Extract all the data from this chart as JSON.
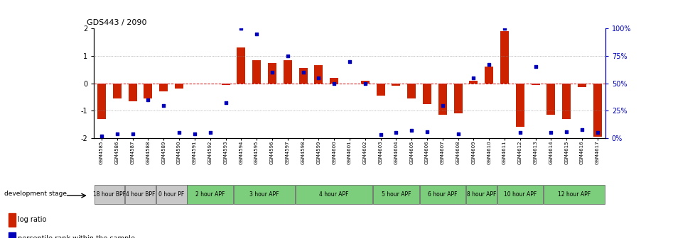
{
  "title": "GDS443 / 2090",
  "samples": [
    "GSM4585",
    "GSM4586",
    "GSM4587",
    "GSM4588",
    "GSM4589",
    "GSM4590",
    "GSM4591",
    "GSM4592",
    "GSM4593",
    "GSM4594",
    "GSM4595",
    "GSM4596",
    "GSM4597",
    "GSM4598",
    "GSM4599",
    "GSM4600",
    "GSM4601",
    "GSM4602",
    "GSM4603",
    "GSM4604",
    "GSM4605",
    "GSM4606",
    "GSM4607",
    "GSM4608",
    "GSM4609",
    "GSM4610",
    "GSM4611",
    "GSM4612",
    "GSM4613",
    "GSM4614",
    "GSM4615",
    "GSM4616",
    "GSM4617"
  ],
  "log_ratio": [
    -1.3,
    -0.55,
    -0.65,
    -0.55,
    -0.3,
    -0.2,
    0.0,
    0.0,
    -0.05,
    1.3,
    0.85,
    0.75,
    0.85,
    0.55,
    0.65,
    0.2,
    0.0,
    0.1,
    -0.45,
    -0.1,
    -0.55,
    -0.75,
    -1.15,
    -1.1,
    0.1,
    0.6,
    1.9,
    -1.6,
    -0.05,
    -1.15,
    -1.3,
    -0.15,
    -1.95
  ],
  "percentile": [
    2,
    4,
    4,
    35,
    30,
    5,
    4,
    5,
    32,
    100,
    95,
    60,
    75,
    60,
    55,
    50,
    70,
    50,
    3,
    5,
    7,
    6,
    30,
    4,
    55,
    67,
    100,
    5,
    65,
    5,
    6,
    8,
    5
  ],
  "stages": [
    {
      "label": "18 hour BPF",
      "start": 0,
      "end": 1,
      "color": "#c8c8c8"
    },
    {
      "label": "4 hour BPF",
      "start": 2,
      "end": 3,
      "color": "#c8c8c8"
    },
    {
      "label": "0 hour PF",
      "start": 4,
      "end": 5,
      "color": "#c8c8c8"
    },
    {
      "label": "2 hour APF",
      "start": 6,
      "end": 8,
      "color": "#7ccd7c"
    },
    {
      "label": "3 hour APF",
      "start": 9,
      "end": 12,
      "color": "#7ccd7c"
    },
    {
      "label": "4 hour APF",
      "start": 13,
      "end": 17,
      "color": "#7ccd7c"
    },
    {
      "label": "5 hour APF",
      "start": 18,
      "end": 20,
      "color": "#7ccd7c"
    },
    {
      "label": "6 hour APF",
      "start": 21,
      "end": 23,
      "color": "#7ccd7c"
    },
    {
      "label": "8 hour APF",
      "start": 24,
      "end": 25,
      "color": "#7ccd7c"
    },
    {
      "label": "10 hour APF",
      "start": 26,
      "end": 28,
      "color": "#7ccd7c"
    },
    {
      "label": "12 hour APF",
      "start": 29,
      "end": 32,
      "color": "#7ccd7c"
    }
  ],
  "bar_color": "#cc2200",
  "dot_color": "#0000bb",
  "ylim": [
    -2,
    2
  ],
  "y2lim": [
    0,
    100
  ],
  "y_ticks": [
    -2,
    -1,
    0,
    1,
    2
  ],
  "y2_ticks": [
    0,
    25,
    50,
    75,
    100
  ],
  "y2_labels": [
    "0%",
    "25%",
    "50%",
    "75%",
    "100%"
  ]
}
